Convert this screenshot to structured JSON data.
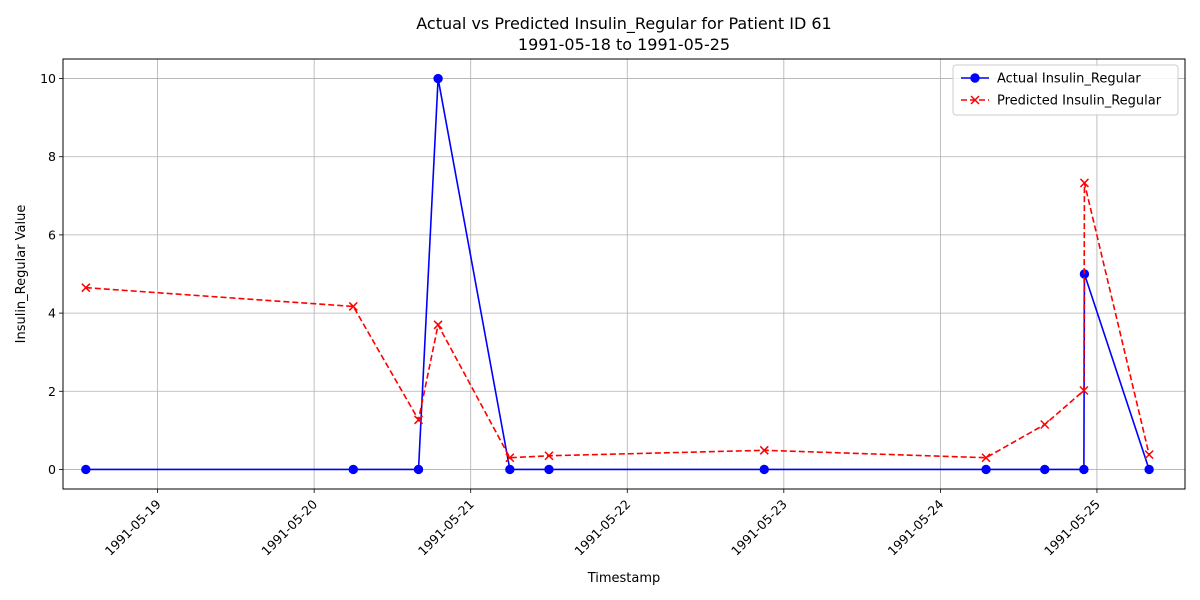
{
  "chart_data": {
    "type": "line",
    "title": "Actual vs Predicted Insulin_Regular for Patient ID 61",
    "subtitle": "1991-05-18 to 1991-05-25",
    "xlabel": "Timestamp",
    "ylabel": "Insulin_Regular Value",
    "x_range": [
      "1991-05-18T09:30",
      "1991-05-25T13:30"
    ],
    "ylim": [
      -0.5,
      10.5
    ],
    "x_ticks": [
      "1991-05-19",
      "1991-05-20",
      "1991-05-21",
      "1991-05-22",
      "1991-05-23",
      "1991-05-24",
      "1991-05-25"
    ],
    "y_ticks": [
      0,
      2,
      4,
      6,
      8,
      10
    ],
    "grid": true,
    "legend_position": "top-right",
    "series": [
      {
        "name": "Actual Insulin_Regular",
        "color": "#0000ff",
        "linestyle": "solid",
        "marker": "circle",
        "points": [
          {
            "x": "1991-05-18T13:00",
            "y": 0
          },
          {
            "x": "1991-05-20T06:00",
            "y": 0
          },
          {
            "x": "1991-05-20T16:00",
            "y": 0
          },
          {
            "x": "1991-05-20T19:00",
            "y": 10
          },
          {
            "x": "1991-05-21T06:00",
            "y": 0
          },
          {
            "x": "1991-05-21T12:00",
            "y": 0
          },
          {
            "x": "1991-05-22T21:00",
            "y": 0
          },
          {
            "x": "1991-05-24T07:00",
            "y": 0
          },
          {
            "x": "1991-05-24T16:00",
            "y": 0
          },
          {
            "x": "1991-05-24T22:00",
            "y": 0
          },
          {
            "x": "1991-05-24T22:05",
            "y": 5
          },
          {
            "x": "1991-05-25T08:00",
            "y": 0
          }
        ]
      },
      {
        "name": "Predicted Insulin_Regular",
        "color": "#ff0000",
        "linestyle": "dashed",
        "marker": "x",
        "points": [
          {
            "x": "1991-05-18T13:00",
            "y": 4.65
          },
          {
            "x": "1991-05-20T06:00",
            "y": 4.17
          },
          {
            "x": "1991-05-20T16:00",
            "y": 1.27
          },
          {
            "x": "1991-05-20T19:00",
            "y": 3.7
          },
          {
            "x": "1991-05-21T06:00",
            "y": 0.3
          },
          {
            "x": "1991-05-21T12:00",
            "y": 0.35
          },
          {
            "x": "1991-05-22T21:00",
            "y": 0.49
          },
          {
            "x": "1991-05-24T07:00",
            "y": 0.3
          },
          {
            "x": "1991-05-24T16:00",
            "y": 1.15
          },
          {
            "x": "1991-05-24T22:00",
            "y": 2.02
          },
          {
            "x": "1991-05-24T22:05",
            "y": 7.33
          },
          {
            "x": "1991-05-25T08:00",
            "y": 0.38
          }
        ]
      }
    ]
  }
}
